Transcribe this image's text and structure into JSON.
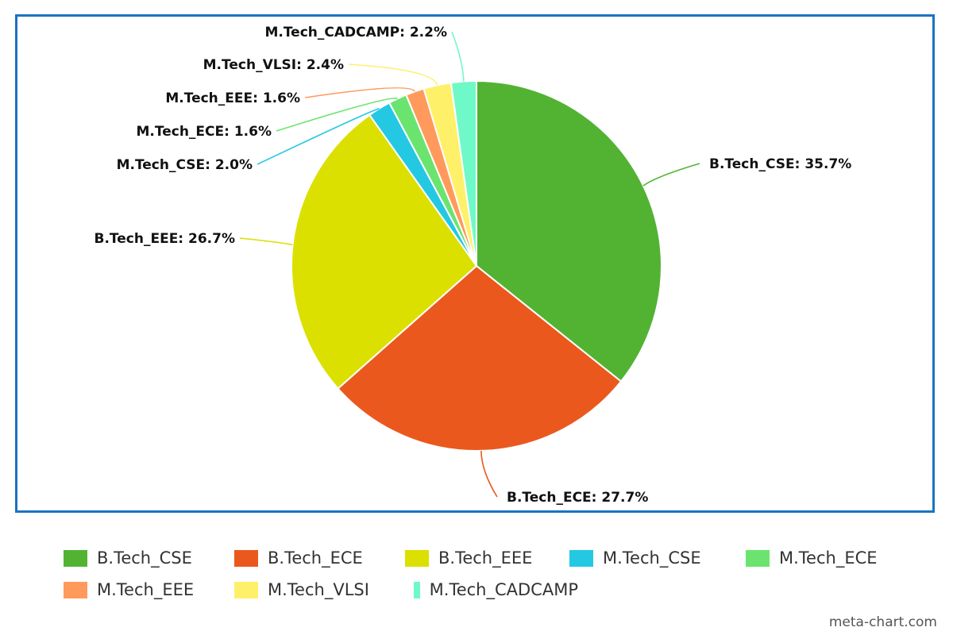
{
  "chart_data": {
    "type": "pie",
    "title": "",
    "slices": [
      {
        "label": "B.Tech_CSE",
        "value": 35.7,
        "display": "B.Tech_CSE: 35.7%",
        "color": "#52b333"
      },
      {
        "label": "B.Tech_ECE",
        "value": 27.7,
        "display": "B.Tech_ECE: 27.7%",
        "color": "#eb581e"
      },
      {
        "label": "B.Tech_EEE",
        "value": 26.7,
        "display": "B.Tech_EEE: 26.7%",
        "color": "#dbe000"
      },
      {
        "label": "M.Tech_CSE",
        "value": 2.0,
        "display": "M.Tech_CSE: 2.0%",
        "color": "#24c8e3"
      },
      {
        "label": "M.Tech_ECE",
        "value": 1.6,
        "display": "M.Tech_ECE: 1.6%",
        "color": "#6ae46e"
      },
      {
        "label": "M.Tech_EEE",
        "value": 1.6,
        "display": "M.Tech_EEE: 1.6%",
        "color": "#ff9a5c"
      },
      {
        "label": "M.Tech_VLSI",
        "value": 2.4,
        "display": "M.Tech_VLSI: 2.4%",
        "color": "#fff06a"
      },
      {
        "label": "M.Tech_CADCAMP",
        "value": 2.2,
        "display": "M.Tech_CADCAMP: 2.2%",
        "color": "#6ff9c8"
      }
    ],
    "legend_position": "bottom",
    "frame_color": "#1a73c1"
  },
  "legend": {
    "rows": [
      [
        "B.Tech_CSE",
        "B.Tech_ECE",
        "B.Tech_EEE",
        "M.Tech_CSE",
        "M.Tech_ECE"
      ],
      [
        "M.Tech_EEE",
        "M.Tech_VLSI",
        "M.Tech_CADCAMP"
      ]
    ]
  },
  "watermark": "meta-chart.com"
}
